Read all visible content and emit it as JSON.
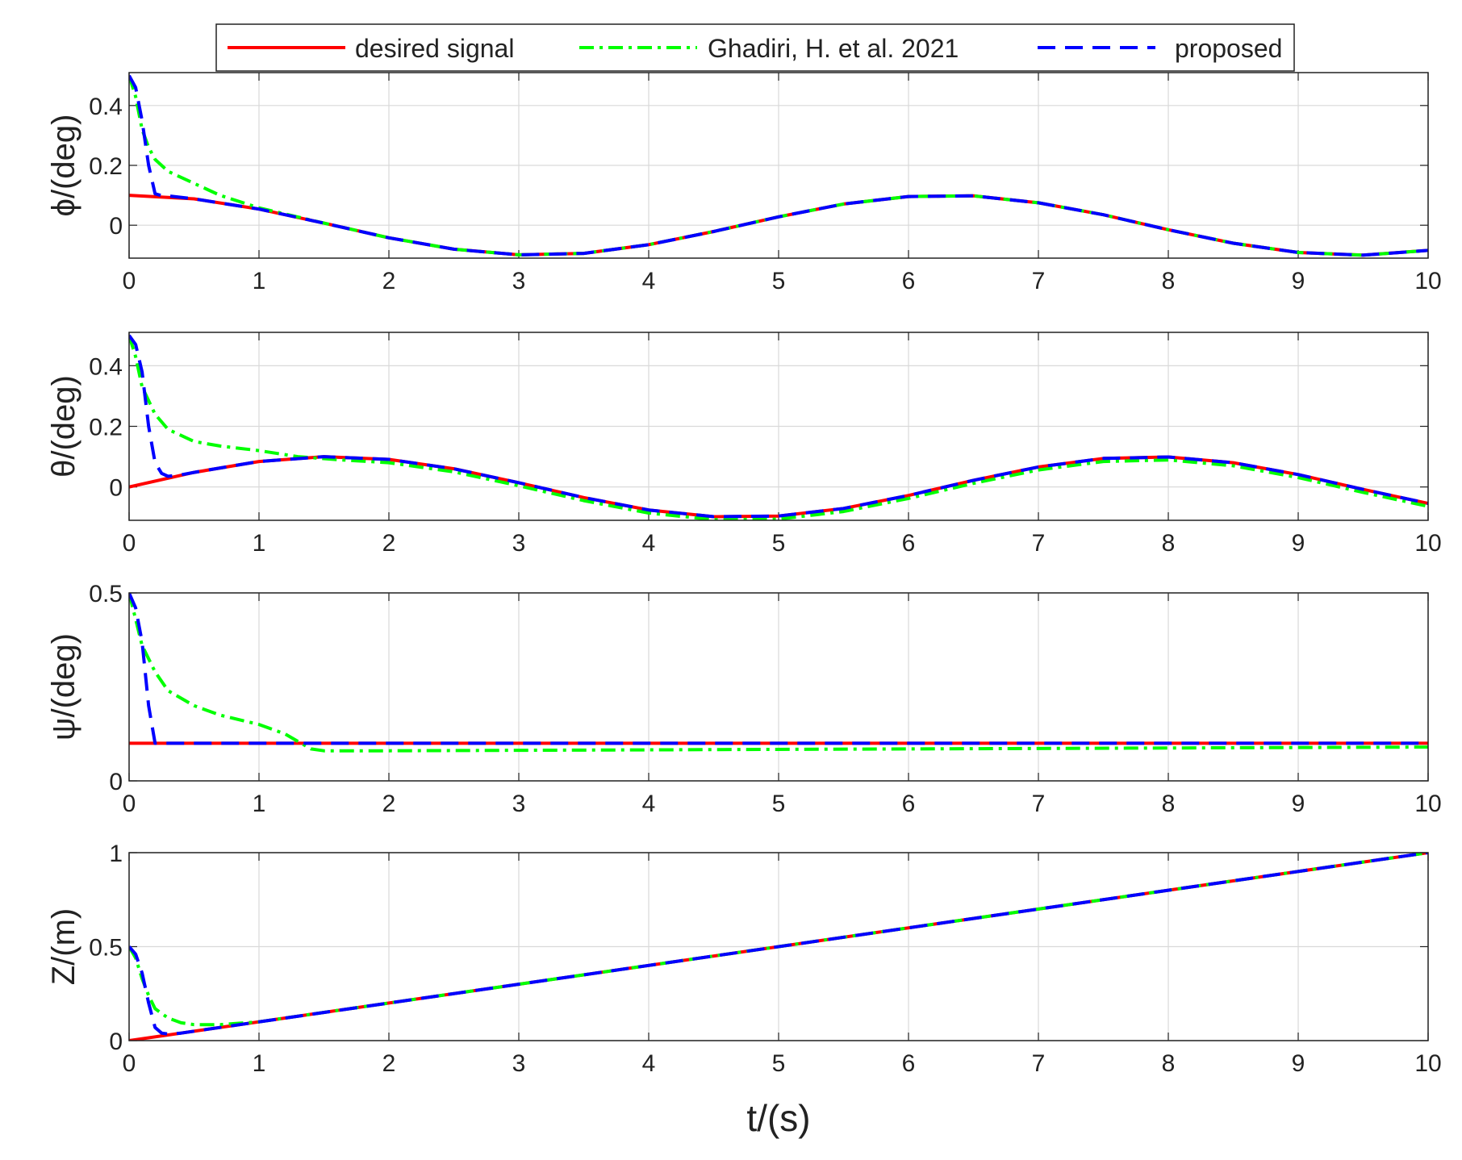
{
  "chart_data": {
    "type": "line",
    "legend": {
      "placement": "top-center",
      "entries": [
        {
          "label": "desired signal",
          "color": "#ff0000",
          "style": "solid"
        },
        {
          "label": "Ghadiri, H. et al. 2021",
          "color": "#00ff00",
          "style": "dashdot"
        },
        {
          "label": "proposed",
          "color": "#0000ff",
          "style": "dashed"
        }
      ]
    },
    "xlabel": "t/(s)",
    "grid": true,
    "x_ticks": [
      "0",
      "1",
      "2",
      "3",
      "4",
      "5",
      "6",
      "7",
      "8",
      "9",
      "10"
    ],
    "panels": [
      {
        "ylabel": "ϕ/(deg)",
        "xlim": [
          0,
          10
        ],
        "ylim": [
          -0.11,
          0.51
        ],
        "y_ticks": [
          {
            "v": 0,
            "t": "0"
          },
          {
            "v": 0.2,
            "t": "0.2"
          },
          {
            "v": 0.4,
            "t": "0.4"
          }
        ],
        "series": [
          {
            "name": "desired signal",
            "x": [
              0,
              0.5,
              1,
              1.5,
              2,
              2.5,
              3,
              3.5,
              4,
              4.5,
              5,
              5.5,
              6,
              6.5,
              7,
              7.5,
              8,
              8.5,
              9,
              9.5,
              10
            ],
            "y": [
              0.1,
              0.088,
              0.054,
              0.007,
              -0.042,
              -0.08,
              -0.099,
              -0.094,
              -0.065,
              -0.021,
              0.028,
              0.071,
              0.096,
              0.098,
              0.075,
              0.035,
              -0.015,
              -0.06,
              -0.091,
              -0.1,
              -0.084
            ]
          },
          {
            "name": "Ghadiri, H. et al. 2021",
            "x": [
              0,
              0.05,
              0.1,
              0.15,
              0.2,
              0.3,
              0.5,
              0.7,
              1,
              1.5,
              2,
              2.5,
              3,
              3.5,
              4,
              4.5,
              5,
              5.5,
              6,
              6.5,
              7,
              7.5,
              8,
              8.5,
              9,
              9.5,
              10
            ],
            "y": [
              0.5,
              0.43,
              0.32,
              0.26,
              0.22,
              0.18,
              0.14,
              0.1,
              0.058,
              0.007,
              -0.042,
              -0.08,
              -0.099,
              -0.094,
              -0.065,
              -0.021,
              0.028,
              0.071,
              0.096,
              0.098,
              0.075,
              0.035,
              -0.015,
              -0.06,
              -0.091,
              -0.1,
              -0.084
            ]
          },
          {
            "name": "proposed",
            "x": [
              0,
              0.05,
              0.1,
              0.15,
              0.2,
              0.25,
              0.3,
              0.5,
              1,
              1.5,
              2,
              2.5,
              3,
              3.5,
              4,
              4.5,
              5,
              5.5,
              6,
              6.5,
              7,
              7.5,
              8,
              8.5,
              9,
              9.5,
              10
            ],
            "y": [
              0.5,
              0.46,
              0.35,
              0.2,
              0.105,
              0.099,
              0.098,
              0.088,
              0.054,
              0.007,
              -0.042,
              -0.08,
              -0.099,
              -0.094,
              -0.065,
              -0.021,
              0.028,
              0.071,
              0.096,
              0.098,
              0.075,
              0.035,
              -0.015,
              -0.06,
              -0.091,
              -0.1,
              -0.084
            ]
          }
        ]
      },
      {
        "ylabel": "θ/(deg)",
        "xlim": [
          0,
          10
        ],
        "ylim": [
          -0.11,
          0.51
        ],
        "y_ticks": [
          {
            "v": 0,
            "t": "0"
          },
          {
            "v": 0.2,
            "t": "0.2"
          },
          {
            "v": 0.4,
            "t": "0.4"
          }
        ],
        "series": [
          {
            "name": "desired signal",
            "x": [
              0,
              0.5,
              1,
              1.5,
              2,
              2.5,
              3,
              3.5,
              4,
              4.5,
              5,
              5.5,
              6,
              6.5,
              7,
              7.5,
              8,
              8.5,
              9,
              9.5,
              10
            ],
            "y": [
              0,
              0.048,
              0.084,
              0.1,
              0.091,
              0.06,
              0.014,
              -0.035,
              -0.076,
              -0.098,
              -0.096,
              -0.071,
              -0.028,
              0.022,
              0.066,
              0.094,
              0.099,
              0.08,
              0.041,
              -0.008,
              -0.054
            ]
          },
          {
            "name": "Ghadiri, H. et al. 2021",
            "x": [
              0,
              0.05,
              0.1,
              0.2,
              0.3,
              0.5,
              0.7,
              1,
              1.3,
              1.6,
              2,
              2.5,
              3,
              3.5,
              4,
              4.5,
              5,
              5.5,
              6,
              6.5,
              7,
              7.5,
              8,
              8.5,
              9,
              9.5,
              10
            ],
            "y": [
              0.5,
              0.43,
              0.33,
              0.24,
              0.19,
              0.15,
              0.135,
              0.12,
              0.1,
              0.09,
              0.08,
              0.05,
              0.004,
              -0.045,
              -0.086,
              -0.108,
              -0.106,
              -0.081,
              -0.038,
              0.012,
              0.056,
              0.084,
              0.089,
              0.07,
              0.031,
              -0.018,
              -0.064
            ]
          },
          {
            "name": "proposed",
            "x": [
              0,
              0.05,
              0.1,
              0.15,
              0.2,
              0.25,
              0.3,
              0.4,
              0.5,
              1,
              1.5,
              2,
              2.5,
              3,
              3.5,
              4,
              4.5,
              5,
              5.5,
              6,
              6.5,
              7,
              7.5,
              8,
              8.5,
              9,
              9.5,
              10
            ],
            "y": [
              0.5,
              0.47,
              0.38,
              0.2,
              0.08,
              0.045,
              0.035,
              0.04,
              0.048,
              0.084,
              0.1,
              0.091,
              0.06,
              0.014,
              -0.035,
              -0.076,
              -0.098,
              -0.096,
              -0.071,
              -0.028,
              0.022,
              0.066,
              0.094,
              0.099,
              0.08,
              0.041,
              -0.008,
              -0.054
            ]
          }
        ]
      },
      {
        "ylabel": "ψ/(deg)",
        "xlim": [
          0,
          10
        ],
        "ylim": [
          0,
          0.5
        ],
        "y_ticks": [
          {
            "v": 0,
            "t": "0"
          },
          {
            "v": 0.5,
            "t": "0.5"
          }
        ],
        "series": [
          {
            "name": "desired signal",
            "x": [
              0,
              10
            ],
            "y": [
              0.1,
              0.1
            ]
          },
          {
            "name": "Ghadiri, H. et al. 2021",
            "x": [
              0,
              0.05,
              0.1,
              0.2,
              0.3,
              0.5,
              0.7,
              1,
              1.2,
              1.3,
              1.4,
              1.5,
              2,
              10
            ],
            "y": [
              0.5,
              0.43,
              0.36,
              0.29,
              0.24,
              0.2,
              0.175,
              0.15,
              0.125,
              0.105,
              0.085,
              0.08,
              0.08,
              0.09
            ]
          },
          {
            "name": "proposed",
            "x": [
              0,
              0.05,
              0.1,
              0.15,
              0.2,
              10
            ],
            "y": [
              0.5,
              0.46,
              0.37,
              0.2,
              0.1,
              0.1
            ]
          }
        ]
      },
      {
        "ylabel": "Z/(m)",
        "xlim": [
          0,
          10
        ],
        "ylim": [
          0,
          1
        ],
        "y_ticks": [
          {
            "v": 0,
            "t": "0"
          },
          {
            "v": 0.5,
            "t": "0.5"
          },
          {
            "v": 1,
            "t": "1"
          }
        ],
        "series": [
          {
            "name": "desired signal",
            "x": [
              0,
              10
            ],
            "y": [
              0,
              1
            ]
          },
          {
            "name": "Ghadiri, H. et al. 2021",
            "x": [
              0,
              0.05,
              0.1,
              0.15,
              0.2,
              0.3,
              0.4,
              0.5,
              0.7,
              1,
              10
            ],
            "y": [
              0.5,
              0.44,
              0.33,
              0.24,
              0.17,
              0.12,
              0.095,
              0.085,
              0.085,
              0.1,
              1
            ]
          },
          {
            "name": "proposed",
            "x": [
              0,
              0.05,
              0.1,
              0.15,
              0.2,
              0.25,
              0.3,
              0.4,
              10
            ],
            "y": [
              0.5,
              0.46,
              0.36,
              0.2,
              0.07,
              0.04,
              0.035,
              0.04,
              1
            ]
          }
        ]
      }
    ]
  }
}
